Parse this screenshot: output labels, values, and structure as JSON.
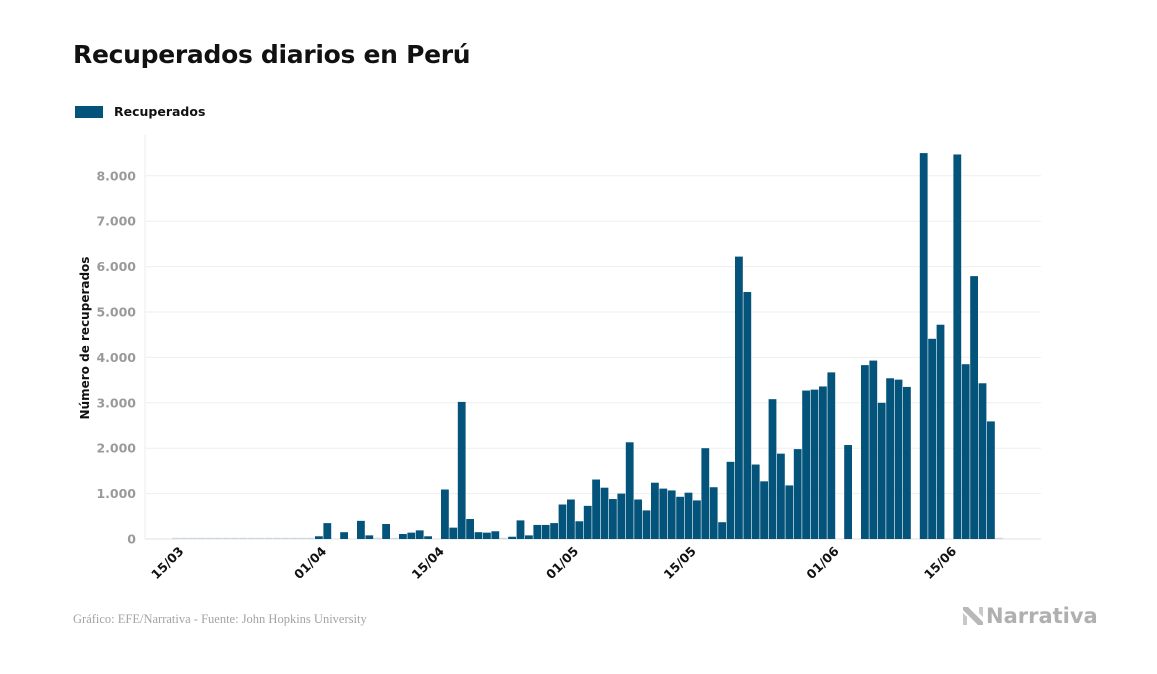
{
  "chart_data": {
    "type": "bar",
    "title": "Recuperados diarios en Perú",
    "xlabel": "",
    "ylabel": "Número de recuperados",
    "ylim": [
      0,
      8900
    ],
    "yticks": [
      0,
      1000,
      2000,
      3000,
      4000,
      5000,
      6000,
      7000,
      8000
    ],
    "ytick_labels": [
      "0",
      "1.000",
      "2.000",
      "3.000",
      "4.000",
      "5.000",
      "6.000",
      "7.000",
      "8.000"
    ],
    "grid": true,
    "legend_position": "top-left",
    "series": [
      {
        "name": "Recuperados",
        "color": "#03537a",
        "values": [
          0,
          0,
          0,
          5,
          5,
          5,
          5,
          5,
          5,
          5,
          5,
          5,
          5,
          5,
          5,
          5,
          20,
          5,
          5,
          5,
          60,
          350,
          0,
          150,
          0,
          400,
          80,
          10,
          330,
          20,
          110,
          140,
          190,
          60,
          0,
          1090,
          250,
          3020,
          440,
          150,
          140,
          170,
          10,
          50,
          410,
          80,
          310,
          310,
          350,
          760,
          870,
          390,
          730,
          1310,
          1130,
          880,
          1000,
          2130,
          870,
          630,
          1240,
          1110,
          1070,
          930,
          1020,
          850,
          2000,
          1140,
          370,
          1700,
          6220,
          5440,
          1640,
          1270,
          3080,
          1880,
          1180,
          1980,
          3270,
          3290,
          3360,
          3670,
          0,
          2070,
          0,
          3830,
          3930,
          3000,
          3540,
          3510,
          3350,
          0,
          8500,
          4410,
          4720,
          0,
          8470,
          3850,
          5790,
          3430,
          2590,
          10,
          0
        ]
      }
    ],
    "categories_start": "12/03",
    "categories": [
      "12/03",
      "13/03",
      "14/03",
      "15/03",
      "16/03",
      "17/03",
      "18/03",
      "19/03",
      "20/03",
      "21/03",
      "22/03",
      "23/03",
      "24/03",
      "25/03",
      "26/03",
      "27/03",
      "28/03",
      "29/03",
      "30/03",
      "31/03",
      "01/04",
      "02/04",
      "03/04",
      "04/04",
      "05/04",
      "06/04",
      "07/04",
      "08/04",
      "09/04",
      "10/04",
      "11/04",
      "12/04",
      "13/04",
      "14/04",
      "15/04",
      "16/04",
      "17/04",
      "18/04",
      "19/04",
      "20/04",
      "21/04",
      "22/04",
      "23/04",
      "24/04",
      "25/04",
      "26/04",
      "27/04",
      "28/04",
      "29/04",
      "30/04",
      "01/05",
      "02/05",
      "03/05",
      "04/05",
      "05/05",
      "06/05",
      "07/05",
      "08/05",
      "09/05",
      "10/05",
      "11/05",
      "12/05",
      "13/05",
      "14/05",
      "15/05",
      "16/05",
      "17/05",
      "18/05",
      "19/05",
      "20/05",
      "21/05",
      "22/05",
      "23/05",
      "24/05",
      "25/05",
      "26/05",
      "27/05",
      "28/05",
      "29/05",
      "30/05",
      "31/05",
      "01/06",
      "02/06",
      "03/06",
      "04/06",
      "05/06",
      "06/06",
      "07/06",
      "08/06",
      "09/06",
      "10/06",
      "11/06",
      "12/06",
      "13/06",
      "14/06",
      "15/06",
      "16/06",
      "17/06",
      "18/06",
      "19/06",
      "20/06",
      "21/06"
    ],
    "xtick_labels": [
      "15/03",
      "01/04",
      "15/04",
      "01/05",
      "15/05",
      "01/06",
      "15/06"
    ]
  },
  "legend": {
    "label": "Recuperados",
    "color": "#03537a"
  },
  "footer": {
    "source": "Gráfico: EFE/Narrativa - Fuente: John Hopkins University",
    "brand": "Narrativa"
  }
}
